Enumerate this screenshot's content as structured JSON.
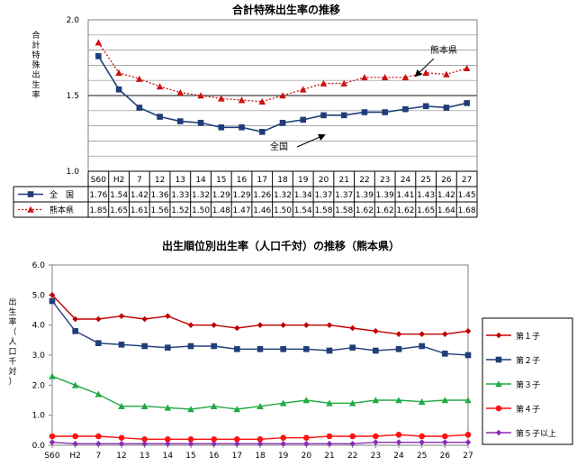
{
  "chart_data": [
    {
      "type": "line",
      "title": "合計特殊出生率の推移",
      "ylabel": "合計特殊出生率",
      "ylim": [
        1.0,
        2.0
      ],
      "yticks": [
        "1.0",
        "1.5",
        "2.0"
      ],
      "grid": true,
      "categories": [
        "S60",
        "H2",
        "7",
        "12",
        "13",
        "14",
        "15",
        "16",
        "17",
        "18",
        "19",
        "20",
        "21",
        "22",
        "23",
        "24",
        "25",
        "26",
        "27"
      ],
      "series": [
        {
          "name": "全　国",
          "color": "#1f3d7a",
          "marker": "square",
          "line": "solid",
          "values": [
            1.76,
            1.54,
            1.42,
            1.36,
            1.33,
            1.32,
            1.29,
            1.29,
            1.26,
            1.32,
            1.34,
            1.37,
            1.37,
            1.39,
            1.39,
            1.41,
            1.43,
            1.42,
            1.45
          ],
          "labels": [
            "1.76",
            "1.54",
            "1.42",
            "1.36",
            "1.33",
            "1.32",
            "1.29",
            "1.29",
            "1.26",
            "1.32",
            "1.34",
            "1.37",
            "1.37",
            "1.39",
            "1.39",
            "1.41",
            "1.43",
            "1.42",
            "1.45"
          ]
        },
        {
          "name": "熊本県",
          "color": "#cc1111",
          "marker": "triangle",
          "line": "dotted",
          "values": [
            1.85,
            1.65,
            1.61,
            1.56,
            1.52,
            1.5,
            1.48,
            1.47,
            1.46,
            1.5,
            1.54,
            1.58,
            1.58,
            1.62,
            1.62,
            1.62,
            1.65,
            1.64,
            1.68
          ],
          "labels": [
            "1.85",
            "1.65",
            "1.61",
            "1.56",
            "1.52",
            "1.50",
            "1.48",
            "1.47",
            "1.46",
            "1.50",
            "1.54",
            "1.58",
            "1.58",
            "1.62",
            "1.62",
            "1.62",
            "1.65",
            "1.64",
            "1.68"
          ]
        }
      ],
      "annotations": [
        "熊本県",
        "全国"
      ]
    },
    {
      "type": "line",
      "title": "出生順位別出生率（人口千対）の推移（熊本県）",
      "ylabel": "出生率（人口千対）",
      "ylim": [
        0.0,
        6.0
      ],
      "yticks": [
        "0.0",
        "1.0",
        "2.0",
        "3.0",
        "4.0",
        "5.0",
        "6.0"
      ],
      "grid": false,
      "legend": "right",
      "categories": [
        "S60",
        "H2",
        "7",
        "12",
        "13",
        "14",
        "15",
        "16",
        "17",
        "18",
        "19",
        "20",
        "21",
        "22",
        "23",
        "24",
        "25",
        "26",
        "27"
      ],
      "series": [
        {
          "name": "第１子",
          "color": "#c00000",
          "marker": "diamond",
          "values": [
            5.0,
            4.2,
            4.2,
            4.3,
            4.2,
            4.3,
            4.0,
            4.0,
            3.9,
            4.0,
            4.0,
            4.0,
            4.0,
            3.9,
            3.8,
            3.7,
            3.7,
            3.7,
            3.8
          ]
        },
        {
          "name": "第２子",
          "color": "#1f3d7a",
          "marker": "square",
          "values": [
            4.8,
            3.8,
            3.4,
            3.35,
            3.3,
            3.25,
            3.3,
            3.3,
            3.2,
            3.2,
            3.2,
            3.2,
            3.15,
            3.25,
            3.15,
            3.2,
            3.3,
            3.05,
            3.0
          ]
        },
        {
          "name": "第３子",
          "color": "#22aa44",
          "marker": "triangle",
          "values": [
            2.3,
            2.0,
            1.7,
            1.3,
            1.3,
            1.25,
            1.2,
            1.3,
            1.2,
            1.3,
            1.4,
            1.5,
            1.4,
            1.4,
            1.5,
            1.5,
            1.45,
            1.5,
            1.5
          ]
        },
        {
          "name": "第４子",
          "color": "#ff1111",
          "marker": "circle",
          "values": [
            0.3,
            0.3,
            0.3,
            0.25,
            0.2,
            0.2,
            0.2,
            0.2,
            0.2,
            0.2,
            0.25,
            0.25,
            0.3,
            0.3,
            0.3,
            0.35,
            0.3,
            0.3,
            0.35
          ]
        },
        {
          "name": "第５子以上",
          "color": "#8a2bb5",
          "marker": "diamond",
          "values": [
            0.1,
            0.05,
            0.05,
            0.05,
            0.05,
            0.05,
            0.05,
            0.05,
            0.05,
            0.05,
            0.05,
            0.05,
            0.05,
            0.05,
            0.1,
            0.1,
            0.1,
            0.1,
            0.1
          ]
        }
      ]
    }
  ]
}
